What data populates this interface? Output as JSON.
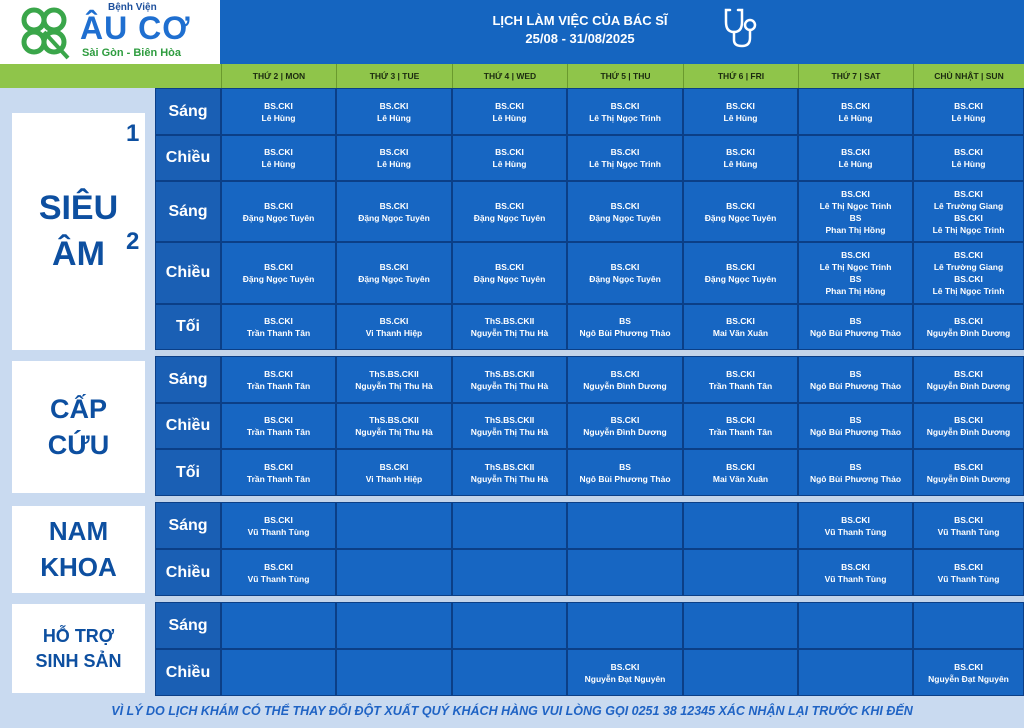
{
  "logo": {
    "line1": "Bệnh Viện",
    "line2": "ÂU CƠ",
    "line3": "Sài Gòn - Biên Hòa"
  },
  "title": {
    "line1": "LỊCH LÀM VIỆC CỦA BÁC SĨ",
    "line2": "25/08 - 31/08/2025"
  },
  "days": [
    "THỨ 2 | MON",
    "THỨ 3 | TUE",
    "THỨ 4 | WED",
    "THỨ 5 | THU",
    "THỨ 6 | FRI",
    "THỨ 7 | SAT",
    "CHỦ NHẬT | SUN"
  ],
  "groups": [
    {
      "name": "SIÊU ÂM",
      "rooms": [
        "1",
        "2"
      ]
    },
    {
      "name": "CẤP CỨU"
    },
    {
      "name": "NAM KHOA"
    },
    {
      "name": "HỖ TRỢ SINH SẢN"
    }
  ],
  "rows": [
    {
      "shift": "Sáng",
      "cells": [
        "BS.CKI\nLê Hùng",
        "BS.CKI\nLê Hùng",
        "BS.CKI\nLê Hùng",
        "BS.CKI\nLê Thị Ngọc Trinh",
        "BS.CKI\nLê Hùng",
        "BS.CKI\nLê Hùng",
        "BS.CKI\nLê Hùng"
      ]
    },
    {
      "shift": "Chiều",
      "cells": [
        "BS.CKI\nLê Hùng",
        "BS.CKI\nLê Hùng",
        "BS.CKI\nLê Hùng",
        "BS.CKI\nLê Thị Ngọc Trinh",
        "BS.CKI\nLê Hùng",
        "BS.CKI\nLê Hùng",
        "BS.CKI\nLê Hùng"
      ]
    },
    {
      "shift": "Sáng",
      "cells": [
        "BS.CKI\nĐặng Ngọc Tuyên",
        "BS.CKI\nĐặng Ngọc Tuyên",
        "BS.CKI\nĐặng Ngọc Tuyên",
        "BS.CKI\nĐặng Ngọc Tuyên",
        "BS.CKI\nĐặng Ngọc Tuyên",
        "BS.CKI\nLê Thị Ngọc Trinh\nBS\nPhan Thị Hồng",
        "BS.CKI\nLê Trường Giang\nBS.CKI\nLê Thị Ngọc Trinh"
      ]
    },
    {
      "shift": "Chiều",
      "cells": [
        "BS.CKI\nĐặng Ngọc Tuyên",
        "BS.CKI\nĐặng Ngọc Tuyên",
        "BS.CKI\nĐặng Ngọc Tuyên",
        "BS.CKI\nĐặng Ngọc Tuyên",
        "BS.CKI\nĐặng Ngọc Tuyên",
        "BS.CKI\nLê Thị Ngọc Trinh\nBS\nPhan Thị Hồng",
        "BS.CKI\nLê Trường Giang\nBS.CKI\nLê Thị Ngọc Trinh"
      ]
    },
    {
      "shift": "Tối",
      "cells": [
        "BS.CKI\nTrần Thanh Tân",
        "BS.CKI\nVi Thanh Hiệp",
        "ThS.BS.CKII\nNguyễn Thị Thu Hà",
        "BS\nNgô Bùi Phương Thảo",
        "BS.CKI\nMai Văn Xuân",
        "BS\nNgô Bùi Phương Thảo",
        "BS.CKI\nNguyễn Đình Dương"
      ]
    },
    {
      "shift": "Sáng",
      "cells": [
        "BS.CKI\nTrần Thanh Tân",
        "ThS.BS.CKII\nNguyễn Thị Thu Hà",
        "ThS.BS.CKII\nNguyễn Thị Thu Hà",
        "BS.CKI\nNguyễn Đình Dương",
        "BS.CKI\nTrần Thanh Tân",
        "BS\nNgô Bùi Phương Thảo",
        "BS.CKI\nNguyễn Đình Dương"
      ]
    },
    {
      "shift": "Chiều",
      "cells": [
        "BS.CKI\nTrần Thanh Tân",
        "ThS.BS.CKII\nNguyễn Thị Thu Hà",
        "ThS.BS.CKII\nNguyễn Thị Thu Hà",
        "BS.CKI\nNguyễn Đình Dương",
        "BS.CKI\nTrần Thanh Tân",
        "BS\nNgô Bùi Phương Thảo",
        "BS.CKI\nNguyễn Đình Dương"
      ]
    },
    {
      "shift": "Tối",
      "cells": [
        "BS.CKI\nTrần Thanh Tân",
        "BS.CKI\nVi Thanh Hiệp",
        "ThS.BS.CKII\nNguyễn Thị Thu Hà",
        "BS\nNgô Bùi Phương Thảo",
        "BS.CKI\nMai Văn Xuân",
        "BS\nNgô Bùi Phương Thảo",
        "BS.CKI\nNguyễn Đình Dương"
      ]
    },
    {
      "shift": "Sáng",
      "cells": [
        "BS.CKI\nVũ Thanh Tùng",
        "",
        "",
        "",
        "",
        "BS.CKI\nVũ Thanh Tùng",
        "BS.CKI\nVũ Thanh Tùng"
      ]
    },
    {
      "shift": "Chiều",
      "cells": [
        "BS.CKI\nVũ Thanh Tùng",
        "",
        "",
        "",
        "",
        "BS.CKI\nVũ Thanh Tùng",
        "BS.CKI\nVũ Thanh Tùng"
      ]
    },
    {
      "shift": "Sáng",
      "cells": [
        "",
        "",
        "",
        "",
        "",
        "",
        ""
      ]
    },
    {
      "shift": "Chiều",
      "cells": [
        "",
        "",
        "",
        "BS.CKI\nNguyễn Đạt Nguyên",
        "",
        "",
        "BS.CKI\nNguyễn Đạt Nguyên"
      ]
    }
  ],
  "footer": "VÌ LÝ DO LỊCH KHÁM CÓ THỂ THAY ĐỔI ĐỘT XUẤT QUÝ KHÁCH HÀNG VUI LÒNG GỌI 0251 38 12345 XÁC NHẬN LẠI TRƯỚC KHI ĐẾN",
  "colors": {
    "header": "#1565c0",
    "day_bar": "#8fc54a",
    "cell": "#1766c2",
    "logo_green": "#2e9c3f"
  }
}
